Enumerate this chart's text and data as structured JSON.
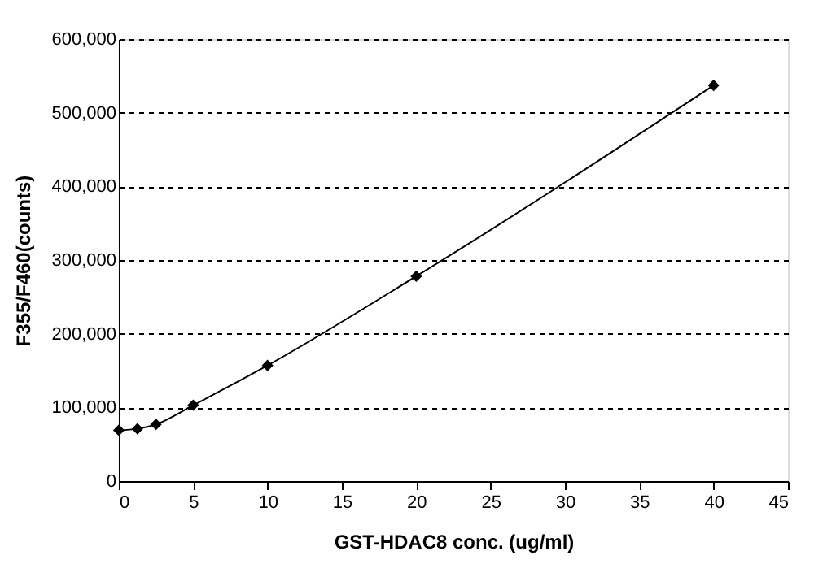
{
  "chart_data": {
    "type": "line",
    "xlabel": "GST-HDAC8 conc. (ug/ml)",
    "ylabel": "F355/F460(counts)",
    "x": [
      0,
      1.25,
      2.5,
      5,
      10,
      20,
      40
    ],
    "series": [
      {
        "color": "#000000",
        "values": [
          69000,
          71000,
          77000,
          103000,
          157000,
          278000,
          537000
        ]
      }
    ],
    "xlim": [
      0,
      45
    ],
    "xticks": [
      0,
      5,
      10,
      15,
      20,
      25,
      30,
      35,
      40,
      45
    ],
    "ylim": [
      0,
      600000
    ],
    "yticks": [
      0,
      {
        "value": 100000,
        "label": "100,000"
      },
      {
        "value": 200000,
        "label": "200,000"
      },
      {
        "value": 300000,
        "label": "300,000"
      },
      {
        "value": 400000,
        "label": "400,000"
      },
      {
        "value": 500000,
        "label": "500,000"
      },
      {
        "value": 600000,
        "label": "600,000"
      }
    ],
    "grid": "y",
    "marker": "diamond",
    "line_style": "solid"
  }
}
